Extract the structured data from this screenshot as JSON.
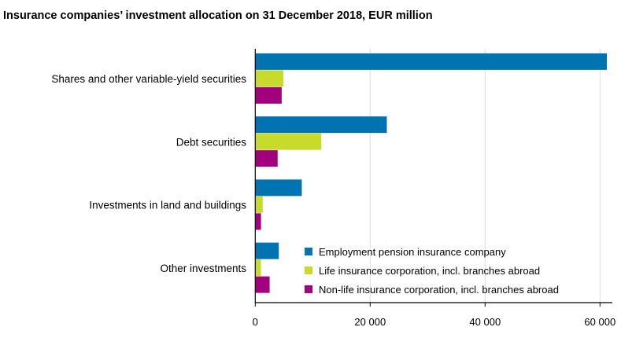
{
  "chart_data": {
    "type": "bar",
    "orientation": "horizontal",
    "title": "Insurance companies’ investment allocation on 31 December 2018, EUR million",
    "categories": [
      "Shares and other variable-yield securities",
      "Debt securities",
      "Investments in land and buildings",
      "Other investments"
    ],
    "series": [
      {
        "name": "Employment pension insurance company",
        "color": "#0073b0",
        "values": [
          61200,
          22900,
          8100,
          4100
        ]
      },
      {
        "name": "Life insurance corporation, incl. branches abroad",
        "color": "#c8da2b",
        "values": [
          4900,
          11500,
          1300,
          1000
        ]
      },
      {
        "name": "Non-life insurance corporation, incl. branches abroad",
        "color": "#a3007d",
        "values": [
          4600,
          3900,
          1000,
          2500
        ]
      }
    ],
    "xlim": [
      0,
      62000
    ],
    "xticks": [
      0,
      20000,
      40000,
      60000
    ],
    "xtick_labels": [
      "0",
      "20 000",
      "40 000",
      "60 000"
    ],
    "grid": "vertical",
    "legend": "bottom-right"
  }
}
